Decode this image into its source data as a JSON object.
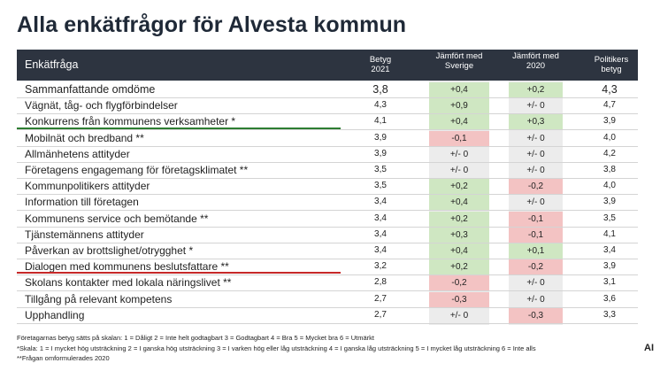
{
  "title": "Alla enkätfrågor för Alvesta kommun",
  "header": {
    "question": "Enkätfråga",
    "grade": "Betyg 2021",
    "vs_sweden": "Jämfört med Sverige",
    "vs_2020": "Jämfört med 2020",
    "politicians": "Politikers betyg"
  },
  "rows": [
    {
      "label": "Sammanfattande omdöme",
      "grade": "3,8",
      "vs_sweden": "+0,4",
      "vs_sweden_tone": "pos",
      "vs_2020": "+0,2",
      "vs_2020_tone": "pos",
      "politicians": "4,3"
    },
    {
      "label": "Vägnät, tåg- och flygförbindelser",
      "grade": "4,3",
      "vs_sweden": "+0,9",
      "vs_sweden_tone": "pos",
      "vs_2020": "+/- 0",
      "vs_2020_tone": "neu",
      "politicians": "4,7"
    },
    {
      "label": "Konkurrens från kommunens verksamheter *",
      "grade": "4,1",
      "vs_sweden": "+0,4",
      "vs_sweden_tone": "pos",
      "vs_2020": "+0,3",
      "vs_2020_tone": "pos",
      "politicians": "3,9"
    },
    {
      "label": "Mobilnät och bredband **",
      "grade": "3,9",
      "vs_sweden": "-0,1",
      "vs_sweden_tone": "neg",
      "vs_2020": "+/- 0",
      "vs_2020_tone": "neu",
      "politicians": "4,0"
    },
    {
      "label": "Allmänhetens attityder",
      "grade": "3,9",
      "vs_sweden": "+/- 0",
      "vs_sweden_tone": "neu",
      "vs_2020": "+/- 0",
      "vs_2020_tone": "neu",
      "politicians": "4,2"
    },
    {
      "label": "Företagens engagemang för företagsklimatet **",
      "grade": "3,5",
      "vs_sweden": "+/- 0",
      "vs_sweden_tone": "neu",
      "vs_2020": "+/- 0",
      "vs_2020_tone": "neu",
      "politicians": "3,8"
    },
    {
      "label": "Kommunpolitikers attityder",
      "grade": "3,5",
      "vs_sweden": "+0,2",
      "vs_sweden_tone": "pos",
      "vs_2020": "-0,2",
      "vs_2020_tone": "neg",
      "politicians": "4,0"
    },
    {
      "label": "Information till företagen",
      "grade": "3,4",
      "vs_sweden": "+0,4",
      "vs_sweden_tone": "pos",
      "vs_2020": "+/- 0",
      "vs_2020_tone": "neu",
      "politicians": "3,9"
    },
    {
      "label": "Kommunens service och bemötande **",
      "grade": "3,4",
      "vs_sweden": "+0,2",
      "vs_sweden_tone": "pos",
      "vs_2020": "-0,1",
      "vs_2020_tone": "neg",
      "politicians": "3,5"
    },
    {
      "label": "Tjänstemännens attityder",
      "grade": "3,4",
      "vs_sweden": "+0,3",
      "vs_sweden_tone": "pos",
      "vs_2020": "-0,1",
      "vs_2020_tone": "neg",
      "politicians": "4,1"
    },
    {
      "label": "Påverkan av brottslighet/otrygghet *",
      "grade": "3,4",
      "vs_sweden": "+0,4",
      "vs_sweden_tone": "pos",
      "vs_2020": "+0,1",
      "vs_2020_tone": "pos",
      "politicians": "3,4"
    },
    {
      "label": "Dialogen med kommunens beslutsfattare **",
      "grade": "3,2",
      "vs_sweden": "+0,2",
      "vs_sweden_tone": "pos",
      "vs_2020": "-0,2",
      "vs_2020_tone": "neg",
      "politicians": "3,9"
    },
    {
      "label": "Skolans kontakter med lokala näringslivet **",
      "grade": "2,8",
      "vs_sweden": "-0,2",
      "vs_sweden_tone": "neg",
      "vs_2020": "+/- 0",
      "vs_2020_tone": "neu",
      "politicians": "3,1"
    },
    {
      "label": "Tillgång på relevant kompetens",
      "grade": "2,7",
      "vs_sweden": "-0,3",
      "vs_sweden_tone": "neg",
      "vs_2020": "+/- 0",
      "vs_2020_tone": "neu",
      "politicians": "3,6"
    },
    {
      "label": "Upphandling",
      "grade": "2,7",
      "vs_sweden": "+/- 0",
      "vs_sweden_tone": "neu",
      "vs_2020": "-0,3",
      "vs_2020_tone": "neg",
      "politicians": "3,3"
    }
  ],
  "footnotes": {
    "scale_grades": "Företagarnas betyg sätts på skalan: 1 = Dåligt 2 = Inte helt godtagbart 3 = Godtagbart 4 = Bra 5 = Mycket bra 6 = Utmärkt",
    "scale_extent": "*Skala: 1 = I mycket hög utsträckning 2 = I ganska hög utsträckning 3 = I varken hög eller låg utsträckning 4 = I ganska låg utsträckning 5 = I mycket låg utsträckning 6 = Inte alls",
    "reworded": "**Frågan omformulerades 2020"
  },
  "logo": "AI",
  "colors": {
    "header_bg": "#2d3440",
    "positive": "#cfe7c2",
    "negative": "#f3c3c3",
    "highlight_line_top": "#2e7d32",
    "highlight_line_bottom": "#c62828"
  }
}
